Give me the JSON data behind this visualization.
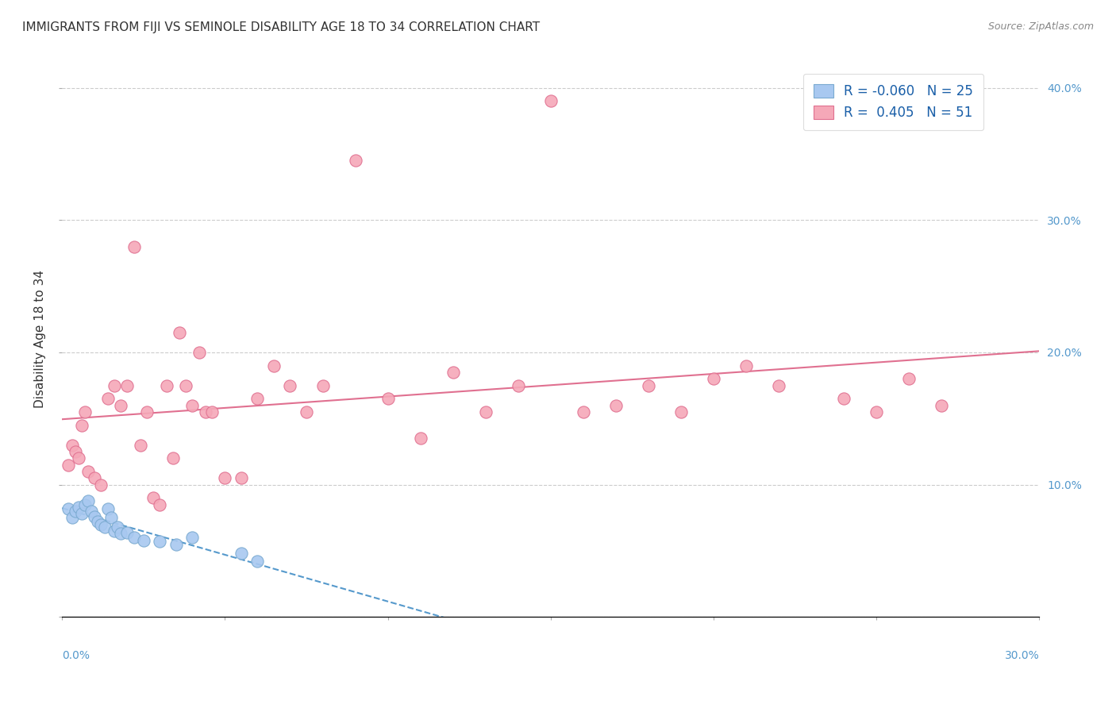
{
  "title": "IMMIGRANTS FROM FIJI VS SEMINOLE DISABILITY AGE 18 TO 34 CORRELATION CHART",
  "source": "Source: ZipAtlas.com",
  "ylabel": "Disability Age 18 to 34",
  "right_yticks": [
    "40.0%",
    "30.0%",
    "20.0%",
    "10.0%"
  ],
  "right_ytick_vals": [
    0.4,
    0.3,
    0.2,
    0.1
  ],
  "xlim": [
    0.0,
    0.3
  ],
  "ylim": [
    0.0,
    0.42
  ],
  "legend": {
    "fiji_r": "-0.060",
    "fiji_n": "25",
    "seminole_r": "0.405",
    "seminole_n": "51"
  },
  "fiji_color": "#a8c8f0",
  "fiji_edge_color": "#7aaad0",
  "seminole_color": "#f5a8b8",
  "seminole_edge_color": "#e07090",
  "fiji_line_color": "#5599cc",
  "seminole_line_color": "#e07090",
  "fiji_points_x": [
    0.002,
    0.003,
    0.004,
    0.005,
    0.006,
    0.007,
    0.008,
    0.009,
    0.01,
    0.011,
    0.012,
    0.013,
    0.014,
    0.015,
    0.016,
    0.017,
    0.018,
    0.02,
    0.022,
    0.025,
    0.03,
    0.035,
    0.04,
    0.055,
    0.06
  ],
  "fiji_points_y": [
    0.082,
    0.075,
    0.08,
    0.083,
    0.078,
    0.085,
    0.088,
    0.08,
    0.076,
    0.072,
    0.07,
    0.068,
    0.082,
    0.075,
    0.065,
    0.068,
    0.063,
    0.064,
    0.06,
    0.058,
    0.057,
    0.055,
    0.06,
    0.048,
    0.042
  ],
  "seminole_points_x": [
    0.002,
    0.003,
    0.004,
    0.005,
    0.006,
    0.007,
    0.008,
    0.01,
    0.012,
    0.014,
    0.016,
    0.018,
    0.02,
    0.022,
    0.024,
    0.026,
    0.028,
    0.03,
    0.032,
    0.034,
    0.036,
    0.038,
    0.04,
    0.042,
    0.044,
    0.046,
    0.05,
    0.055,
    0.06,
    0.065,
    0.07,
    0.075,
    0.08,
    0.09,
    0.1,
    0.11,
    0.12,
    0.13,
    0.14,
    0.15,
    0.16,
    0.17,
    0.18,
    0.19,
    0.2,
    0.21,
    0.22,
    0.24,
    0.25,
    0.26,
    0.27
  ],
  "seminole_points_y": [
    0.115,
    0.13,
    0.125,
    0.12,
    0.145,
    0.155,
    0.11,
    0.105,
    0.1,
    0.165,
    0.175,
    0.16,
    0.175,
    0.28,
    0.13,
    0.155,
    0.09,
    0.085,
    0.175,
    0.12,
    0.215,
    0.175,
    0.16,
    0.2,
    0.155,
    0.155,
    0.105,
    0.105,
    0.165,
    0.19,
    0.175,
    0.155,
    0.175,
    0.345,
    0.165,
    0.135,
    0.185,
    0.155,
    0.175,
    0.39,
    0.155,
    0.16,
    0.175,
    0.155,
    0.18,
    0.19,
    0.175,
    0.165,
    0.155,
    0.18,
    0.16
  ],
  "background_color": "#ffffff",
  "grid_color": "#cccccc"
}
